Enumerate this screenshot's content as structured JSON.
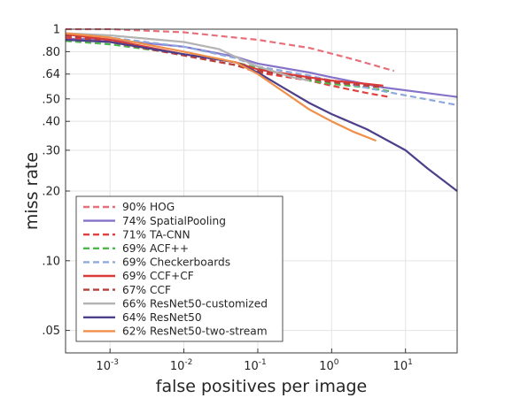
{
  "chart_data": {
    "type": "line",
    "title": "",
    "xlabel": "false positives per image",
    "ylabel": "miss rate",
    "x_scale": "log",
    "y_scale": "log",
    "xlim": [
      0.00025,
      50
    ],
    "ylim": [
      0.04,
      1
    ],
    "x_ticks": [
      {
        "base": "10",
        "exp": "-3",
        "value": 0.001
      },
      {
        "base": "10",
        "exp": "-2",
        "value": 0.01
      },
      {
        "base": "10",
        "exp": "-1",
        "value": 0.1
      },
      {
        "base": "10",
        "exp": "0",
        "value": 1
      },
      {
        "base": "10",
        "exp": "1",
        "value": 10
      }
    ],
    "y_ticks": [
      {
        "label": "1",
        "value": 1
      },
      {
        "label": ".80",
        "value": 0.8
      },
      {
        "label": ".64",
        "value": 0.64
      },
      {
        "label": ".50",
        "value": 0.5
      },
      {
        "label": ".40",
        "value": 0.4
      },
      {
        "label": ".30",
        "value": 0.3
      },
      {
        "label": ".20",
        "value": 0.2
      },
      {
        "label": ".10",
        "value": 0.1
      },
      {
        "label": ".05",
        "value": 0.05
      }
    ],
    "grid": true,
    "legend_position": "bottom-left",
    "series": [
      {
        "name": "90% HOG",
        "color": "#e8707a",
        "dash": "dashed",
        "x": [
          0.00025,
          0.001,
          0.01,
          0.05,
          0.1,
          0.5,
          2,
          7
        ],
        "y": [
          1.0,
          1.0,
          0.97,
          0.92,
          0.9,
          0.83,
          0.74,
          0.66
        ]
      },
      {
        "name": "74% SpatialPooling",
        "color": "#8573c9",
        "dash": "solid",
        "x": [
          0.00025,
          0.001,
          0.01,
          0.05,
          0.1,
          0.5,
          1,
          5,
          50
        ],
        "y": [
          0.91,
          0.9,
          0.84,
          0.76,
          0.71,
          0.65,
          0.62,
          0.56,
          0.51
        ]
      },
      {
        "name": "71% TA-CNN",
        "color": "#e0403f",
        "dash": "dashed",
        "x": [
          0.00025,
          0.001,
          0.01,
          0.05,
          0.1,
          0.5,
          1,
          3,
          6
        ],
        "y": [
          0.92,
          0.89,
          0.77,
          0.7,
          0.65,
          0.6,
          0.57,
          0.53,
          0.51
        ]
      },
      {
        "name": "69% ACF++",
        "color": "#4cb84a",
        "dash": "dashed",
        "x": [
          0.00025,
          0.001,
          0.01,
          0.05,
          0.1,
          0.5,
          1,
          3,
          6
        ],
        "y": [
          0.89,
          0.86,
          0.78,
          0.72,
          0.68,
          0.6,
          0.58,
          0.56,
          0.54
        ]
      },
      {
        "name": "69% Checkerboards",
        "color": "#8ea9dd",
        "dash": "dashed",
        "x": [
          0.00025,
          0.001,
          0.01,
          0.05,
          0.1,
          0.5,
          1,
          5,
          50
        ],
        "y": [
          0.94,
          0.92,
          0.84,
          0.75,
          0.69,
          0.63,
          0.6,
          0.54,
          0.47
        ]
      },
      {
        "name": "69% CCF+CF",
        "color": "#d93a38",
        "dash": "solid",
        "x": [
          0.00025,
          0.001,
          0.01,
          0.05,
          0.1,
          0.5,
          1,
          3,
          5
        ],
        "y": [
          0.95,
          0.9,
          0.78,
          0.72,
          0.67,
          0.62,
          0.6,
          0.58,
          0.57
        ]
      },
      {
        "name": "67% CCF",
        "color": "#b83e3b",
        "dash": "dashed",
        "x": [
          0.00025,
          0.001,
          0.01,
          0.05,
          0.1,
          0.5,
          1,
          3,
          5
        ],
        "y": [
          0.94,
          0.88,
          0.77,
          0.7,
          0.66,
          0.61,
          0.59,
          0.57,
          0.56
        ]
      },
      {
        "name": "66% ResNet50-customized",
        "color": "#b3b3b3",
        "dash": "solid",
        "x": [
          0.00025,
          0.001,
          0.01,
          0.03,
          0.05,
          0.1,
          0.3,
          0.5
        ],
        "y": [
          0.96,
          0.94,
          0.88,
          0.82,
          0.76,
          0.69,
          0.62,
          0.6
        ]
      },
      {
        "name": "64% ResNet50",
        "color": "#4d3f8a",
        "dash": "solid",
        "x": [
          0.00025,
          0.001,
          0.01,
          0.05,
          0.1,
          0.2,
          0.5,
          1,
          3,
          10,
          20,
          50
        ],
        "y": [
          0.9,
          0.88,
          0.78,
          0.72,
          0.65,
          0.57,
          0.48,
          0.43,
          0.37,
          0.3,
          0.25,
          0.2
        ]
      },
      {
        "name": "62% ResNet50-two-stream",
        "color": "#f08f4a",
        "dash": "solid",
        "x": [
          0.00025,
          0.001,
          0.01,
          0.05,
          0.1,
          0.2,
          0.5,
          1,
          2,
          4
        ],
        "y": [
          0.96,
          0.92,
          0.8,
          0.72,
          0.64,
          0.55,
          0.45,
          0.4,
          0.36,
          0.33
        ]
      }
    ]
  }
}
